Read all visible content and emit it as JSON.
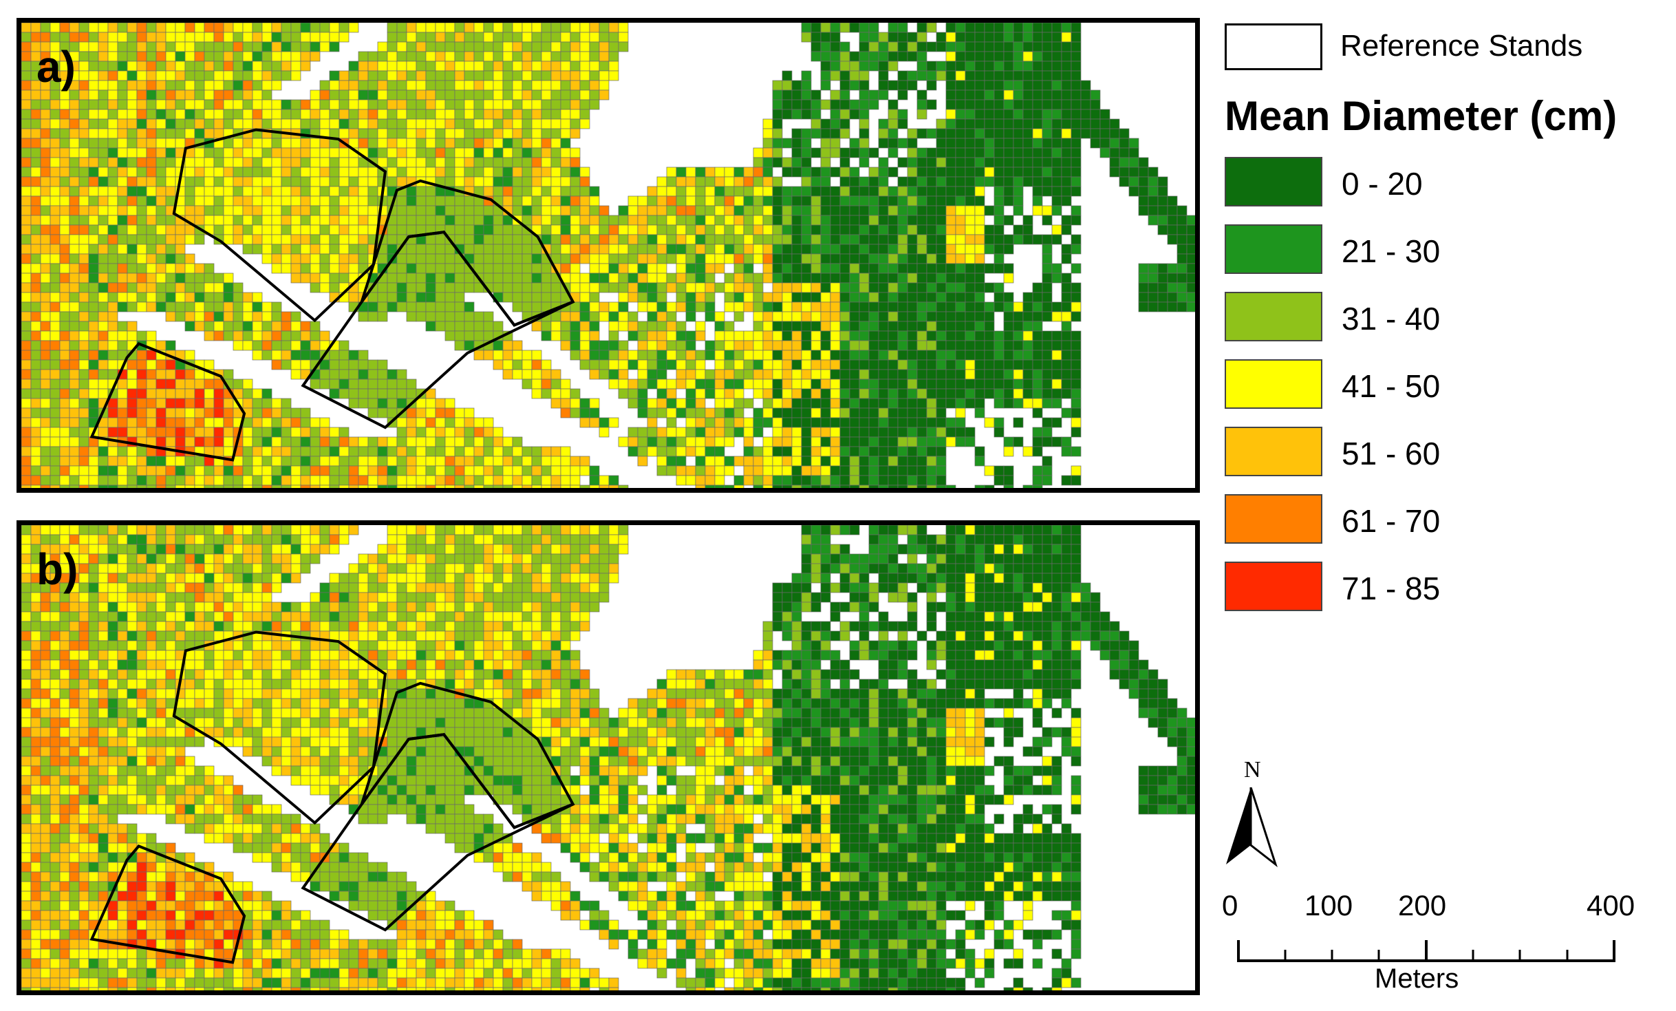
{
  "panels": [
    {
      "label": "a)"
    },
    {
      "label": "b)"
    }
  ],
  "legend": {
    "reference_label": "Reference Stands",
    "title": "Mean Diameter (cm)",
    "classes": [
      {
        "label": "0 - 20",
        "color": "#0d6e0d"
      },
      {
        "label": "21 - 30",
        "color": "#1e951e"
      },
      {
        "label": "31 - 40",
        "color": "#8fc21a"
      },
      {
        "label": "41 - 50",
        "color": "#ffff00"
      },
      {
        "label": "51 - 60",
        "color": "#ffc20a"
      },
      {
        "label": "61 - 70",
        "color": "#ff7f00"
      },
      {
        "label": "71 - 85",
        "color": "#ff2a00"
      }
    ]
  },
  "north_arrow": {
    "letter": "N"
  },
  "scale_bar": {
    "ticks": [
      "0",
      "100",
      "200",
      "400"
    ],
    "unit": "Meters"
  }
}
